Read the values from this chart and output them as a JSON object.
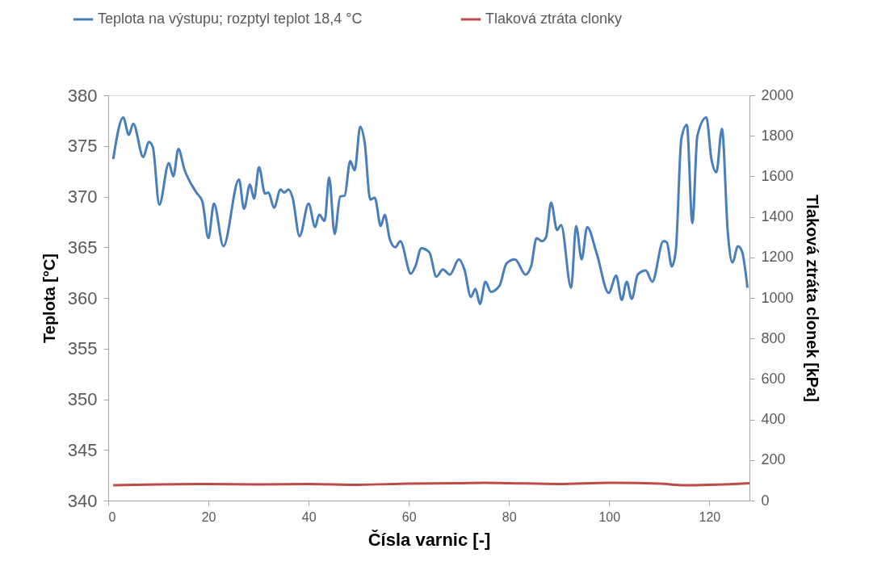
{
  "chart_data": {
    "type": "line",
    "xlabel": "Čísla varnic [-]",
    "ylabel": "Teplota  [°C]",
    "y2label": "Tlaková ztráta clonek [kPa]",
    "xlim": [
      0,
      128
    ],
    "xticks": [
      0,
      20,
      40,
      60,
      80,
      100,
      120
    ],
    "ylim": [
      340,
      380
    ],
    "yticks": [
      340,
      345,
      350,
      355,
      360,
      365,
      370,
      375,
      380
    ],
    "y2lim": [
      0,
      2000
    ],
    "y2ticks": [
      0,
      200,
      400,
      600,
      800,
      1000,
      1200,
      1400,
      1600,
      1800,
      2000
    ],
    "legend": "top",
    "line_style": "solid",
    "series": [
      {
        "name": "Teplota na výstupu; rozptyl teplot 18,4 °C",
        "color": "#4a7ebb",
        "x": [
          1,
          3.0,
          4.1,
          5.0,
          7.0,
          8.1,
          8.9,
          10.2,
          12.1,
          13.0,
          14.0,
          15.2,
          17.6,
          18.8,
          20.0,
          21.1,
          23.0,
          26.1,
          27.1,
          28.3,
          29.1,
          30.1,
          31.3,
          32.0,
          33.1,
          34.4,
          35.1,
          36.0,
          36.8,
          38.2,
          40.0,
          41.3,
          42.1,
          43.2,
          44.1,
          45.2,
          46.3,
          47.2,
          48.3,
          49.2,
          50.3,
          51.2,
          52.3,
          53.2,
          54.4,
          55.2,
          56.2,
          57.3,
          58.3,
          60.4,
          61.3,
          62.5,
          64.1,
          65.5,
          66.8,
          68.2,
          70.0,
          71.1,
          72.4,
          73.3,
          74.2,
          75.3,
          76.4,
          78.1,
          79.5,
          81.2,
          83.3,
          84.4,
          85.5,
          86.6,
          87.4,
          88.4,
          89.6,
          90.4,
          92.4,
          93.4,
          94.5,
          95.6,
          97.5,
          99.9,
          101.4,
          102.5,
          103.5,
          104.5,
          105.7,
          107.3,
          108.6,
          110.8,
          111.5,
          112.5,
          113.3,
          114.4,
          115.5,
          116.6,
          117.6,
          119.4,
          120.4,
          121.4,
          122.5,
          123.7,
          124.6,
          125.7,
          126.5,
          127.6
        ],
        "values": [
          373.7,
          377.8,
          376.1,
          377.2,
          373.9,
          375.4,
          374.9,
          369.2,
          373.3,
          372.0,
          374.7,
          372.7,
          370.4,
          369.5,
          365.9,
          369.3,
          365.1,
          371.7,
          368.8,
          371.2,
          369.8,
          372.9,
          370.3,
          370.4,
          368.9,
          370.7,
          370.4,
          370.7,
          369.9,
          366.1,
          369.3,
          367.0,
          368.2,
          367.6,
          371.9,
          366.3,
          370.0,
          370.1,
          373.5,
          372.6,
          376.9,
          375.3,
          369.7,
          369.9,
          367.1,
          368.2,
          365.8,
          365.0,
          365.6,
          362.4,
          363.1,
          364.9,
          364.5,
          362.1,
          362.8,
          362.3,
          363.8,
          362.8,
          360.1,
          360.9,
          359.4,
          361.6,
          360.6,
          361.2,
          363.4,
          363.8,
          362.3,
          363.1,
          365.9,
          365.6,
          366.0,
          369.4,
          366.7,
          367.2,
          361.0,
          367.1,
          363.8,
          367.0,
          364.4,
          360.5,
          362.2,
          359.8,
          361.6,
          359.9,
          362.3,
          362.7,
          361.6,
          365.6,
          365.5,
          363.1,
          364.7,
          375.7,
          377.1,
          367.4,
          376.0,
          377.8,
          373.7,
          372.4,
          376.7,
          366.3,
          363.5,
          365.1,
          364.6,
          361.0
        ]
      },
      {
        "name": "Tlaková ztráta clonky",
        "color": "#be4b48",
        "axis": "y2",
        "x": [
          1,
          10,
          20,
          30,
          40,
          50,
          60,
          70,
          75,
          80,
          90,
          100,
          110,
          115,
          120,
          125,
          128
        ],
        "values": [
          76,
          80,
          82,
          80,
          82,
          78,
          84,
          86,
          88,
          86,
          82,
          88,
          84,
          76,
          78,
          82,
          86
        ]
      }
    ]
  }
}
